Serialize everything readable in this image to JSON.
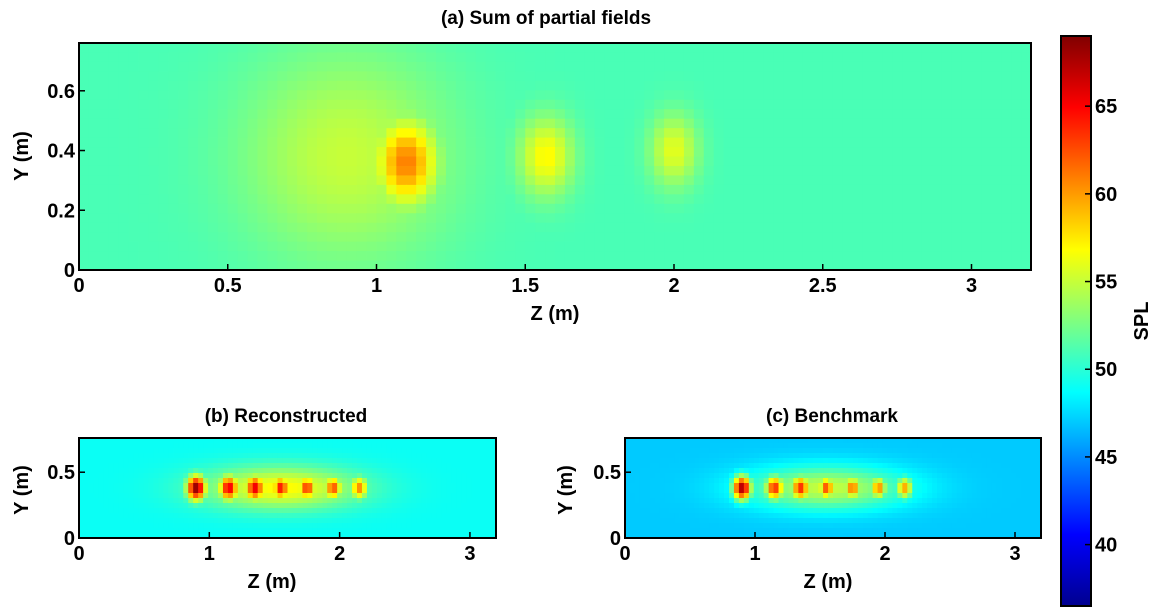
{
  "chart_data": [
    {
      "id": "a",
      "type": "heatmap",
      "title": "(a) Sum of partial fields",
      "xlabel": "Z (m)",
      "ylabel": "Y (m)",
      "xlim": [
        0,
        3.2
      ],
      "ylim": [
        0,
        0.76
      ],
      "xticks": [
        0,
        0.5,
        1,
        1.5,
        2,
        2.5,
        3
      ],
      "xtick_labels": [
        "0",
        "0.5",
        "1",
        "1.5",
        "2",
        "2.5",
        "3"
      ],
      "yticks": [
        0,
        0.2,
        0.4,
        0.6
      ],
      "ytick_labels": [
        "0",
        "0.2",
        "0.4",
        "0.6"
      ],
      "background_spl": 51,
      "sources": [
        {
          "z": 0.9,
          "y": 0.38,
          "spl": 55,
          "sz": 0.35,
          "sy": 0.35
        },
        {
          "z": 1.1,
          "y": 0.36,
          "spl": 61,
          "sz": 0.1,
          "sy": 0.14
        },
        {
          "z": 1.57,
          "y": 0.38,
          "spl": 57,
          "sz": 0.09,
          "sy": 0.13
        },
        {
          "z": 2.0,
          "y": 0.4,
          "spl": 56,
          "sz": 0.08,
          "sy": 0.12
        },
        {
          "z": 3.15,
          "y": 0.15,
          "spl": 47,
          "sz": 0.22,
          "sy": 0.3
        },
        {
          "z": 0.05,
          "y": 0.4,
          "spl": 49,
          "sz": 0.2,
          "sy": 0.4
        }
      ]
    },
    {
      "id": "b",
      "type": "heatmap",
      "title": "(b) Reconstructed",
      "xlabel": "Z (m)",
      "ylabel": "Y (m)",
      "xlim": [
        0,
        3.2
      ],
      "ylim": [
        0,
        0.76
      ],
      "xticks": [
        0,
        1,
        2,
        3
      ],
      "xtick_labels": [
        "0",
        "1",
        "2",
        "3"
      ],
      "yticks": [
        0,
        0.5
      ],
      "ytick_labels": [
        "0",
        "0.5"
      ],
      "background_spl": 49,
      "sources": [
        {
          "z": 1.55,
          "y": 0.38,
          "spl": 57,
          "sz": 0.6,
          "sy": 0.16
        },
        {
          "z": 0.9,
          "y": 0.38,
          "spl": 69,
          "sz": 0.07,
          "sy": 0.09
        },
        {
          "z": 1.15,
          "y": 0.38,
          "spl": 66,
          "sz": 0.07,
          "sy": 0.09
        },
        {
          "z": 1.35,
          "y": 0.38,
          "spl": 66,
          "sz": 0.07,
          "sy": 0.09
        },
        {
          "z": 1.55,
          "y": 0.38,
          "spl": 65,
          "sz": 0.06,
          "sy": 0.08
        },
        {
          "z": 1.75,
          "y": 0.38,
          "spl": 64,
          "sz": 0.06,
          "sy": 0.08
        },
        {
          "z": 1.95,
          "y": 0.38,
          "spl": 63,
          "sz": 0.06,
          "sy": 0.08
        },
        {
          "z": 2.15,
          "y": 0.38,
          "spl": 61,
          "sz": 0.06,
          "sy": 0.08
        }
      ]
    },
    {
      "id": "c",
      "type": "heatmap",
      "title": "(c) Benchmark",
      "xlabel": "Z (m)",
      "ylabel": "Y (m)",
      "xlim": [
        0,
        3.2
      ],
      "ylim": [
        0,
        0.76
      ],
      "xticks": [
        0,
        1,
        2,
        3
      ],
      "xtick_labels": [
        "0",
        "1",
        "2",
        "3"
      ],
      "yticks": [
        0,
        0.5
      ],
      "ytick_labels": [
        "0",
        "0.5"
      ],
      "background_spl": 47,
      "sources": [
        {
          "z": 1.55,
          "y": 0.38,
          "spl": 55,
          "sz": 0.6,
          "sy": 0.16
        },
        {
          "z": 0.9,
          "y": 0.38,
          "spl": 68,
          "sz": 0.07,
          "sy": 0.09
        },
        {
          "z": 1.15,
          "y": 0.38,
          "spl": 64,
          "sz": 0.07,
          "sy": 0.09
        },
        {
          "z": 1.35,
          "y": 0.38,
          "spl": 64,
          "sz": 0.07,
          "sy": 0.09
        },
        {
          "z": 1.55,
          "y": 0.38,
          "spl": 63,
          "sz": 0.06,
          "sy": 0.08
        },
        {
          "z": 1.75,
          "y": 0.38,
          "spl": 62,
          "sz": 0.06,
          "sy": 0.08
        },
        {
          "z": 1.95,
          "y": 0.38,
          "spl": 61,
          "sz": 0.06,
          "sy": 0.08
        },
        {
          "z": 2.15,
          "y": 0.38,
          "spl": 60,
          "sz": 0.06,
          "sy": 0.08
        },
        {
          "z": 2.85,
          "y": 0.3,
          "spl": 42,
          "sz": 0.25,
          "sy": 0.3
        }
      ]
    }
  ],
  "colorbar": {
    "label": "SPL",
    "colormap": "jet",
    "range": [
      36.5,
      69
    ],
    "ticks": [
      40,
      45,
      50,
      55,
      60,
      65
    ],
    "tick_labels": [
      "40",
      "45",
      "50",
      "55",
      "60",
      "65"
    ]
  }
}
